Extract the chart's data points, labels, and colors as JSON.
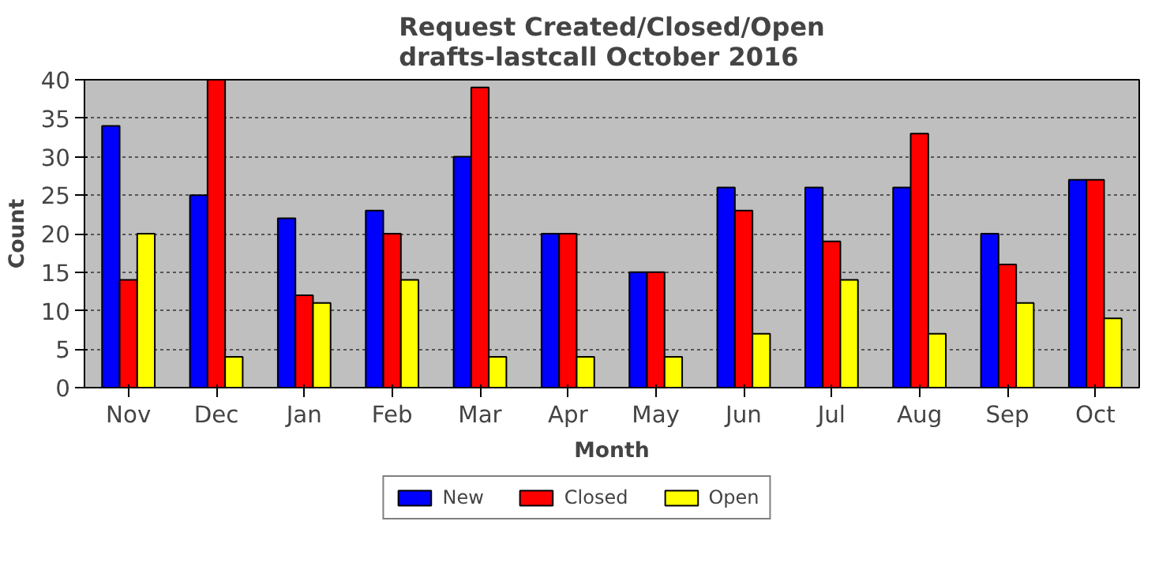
{
  "chart_data": {
    "type": "bar",
    "title": "Request Created/Closed/Open\ndrafts-lastcall October 2016",
    "xlabel": "Month",
    "ylabel": "Count",
    "categories": [
      "Nov",
      "Dec",
      "Jan",
      "Feb",
      "Mar",
      "Apr",
      "May",
      "Jun",
      "Jul",
      "Aug",
      "Sep",
      "Oct"
    ],
    "series": [
      {
        "name": "New",
        "color": "#0000ff",
        "values": [
          34,
          25,
          22,
          23,
          30,
          20,
          15,
          26,
          26,
          26,
          20,
          27
        ]
      },
      {
        "name": "Closed",
        "color": "#ff0000",
        "values": [
          14,
          40,
          12,
          20,
          39,
          20,
          15,
          23,
          19,
          33,
          16,
          27
        ]
      },
      {
        "name": "Open",
        "color": "#ffff00",
        "values": [
          20,
          4,
          11,
          14,
          4,
          4,
          4,
          7,
          14,
          7,
          11,
          9
        ]
      }
    ],
    "ylim": [
      0,
      40
    ],
    "yticks": [
      0,
      5,
      10,
      15,
      20,
      25,
      30,
      35,
      40
    ],
    "grid": "y",
    "legend": "bottom"
  }
}
